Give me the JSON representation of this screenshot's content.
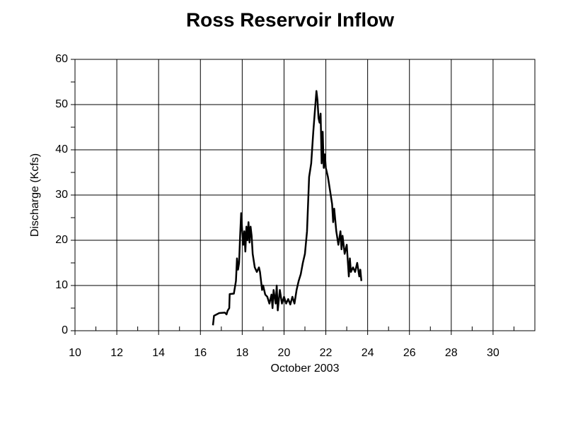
{
  "chart_data": {
    "type": "line",
    "title": "Ross Reservoir Inflow",
    "x_label": "October 2003",
    "y_label": "Discharge (Kcfs)",
    "xlim": [
      10,
      32
    ],
    "ylim": [
      0,
      60
    ],
    "xticks": [
      10,
      12,
      14,
      16,
      18,
      20,
      22,
      24,
      26,
      28,
      30
    ],
    "yticks": [
      0,
      10,
      20,
      30,
      40,
      50,
      60
    ],
    "x_minor_ticks": [
      11,
      13,
      15,
      17,
      19,
      21,
      23,
      25,
      27,
      29,
      31
    ],
    "y_minor_ticks": [
      5,
      15,
      25,
      35,
      45,
      55
    ],
    "grid": true,
    "series": [
      {
        "name": "Discharge",
        "color": "#000000",
        "x": [
          16.6,
          16.65,
          16.9,
          17.17,
          17.25,
          17.3,
          17.38,
          17.4,
          17.6,
          17.7,
          17.75,
          17.8,
          17.85,
          17.9,
          17.95,
          18.0,
          18.05,
          18.1,
          18.15,
          18.2,
          18.25,
          18.3,
          18.35,
          18.4,
          18.45,
          18.5,
          18.6,
          18.7,
          18.8,
          18.85,
          18.95,
          19.0,
          19.1,
          19.2,
          19.3,
          19.4,
          19.45,
          19.5,
          19.6,
          19.65,
          19.7,
          19.8,
          19.9,
          20.0,
          20.1,
          20.2,
          20.3,
          20.4,
          20.5,
          20.6,
          20.7,
          20.8,
          20.9,
          21.0,
          21.1,
          21.2,
          21.3,
          21.4,
          21.5,
          21.55,
          21.6,
          21.65,
          21.7,
          21.75,
          21.8,
          21.85,
          21.9,
          21.95,
          22.0,
          22.1,
          22.2,
          22.3,
          22.35,
          22.4,
          22.5,
          22.6,
          22.7,
          22.75,
          22.8,
          22.9,
          23.0,
          23.1,
          23.15,
          23.2,
          23.3,
          23.4,
          23.5,
          23.6,
          23.65,
          23.7
        ],
        "values": [
          1.2,
          3.3,
          3.9,
          4,
          3.6,
          4.4,
          5,
          8.1,
          8.2,
          11,
          16,
          13.5,
          15,
          21,
          26,
          22,
          19,
          22,
          17.5,
          23,
          20,
          24,
          19.5,
          23,
          21,
          17,
          14,
          13,
          14,
          13,
          9,
          10,
          8,
          7.5,
          6,
          8,
          5,
          9,
          6,
          10,
          4.5,
          9,
          6,
          7.5,
          6,
          7,
          5.8,
          7.5,
          6,
          9,
          11,
          12.5,
          15,
          17,
          22,
          34,
          37,
          44,
          50,
          53,
          51,
          47,
          46,
          48,
          37,
          44,
          36,
          39,
          36,
          34,
          31,
          28,
          24,
          27,
          22,
          19,
          22,
          18,
          21,
          17,
          19,
          12,
          16,
          13,
          14,
          13,
          15,
          12,
          13.5,
          11
        ]
      }
    ]
  }
}
